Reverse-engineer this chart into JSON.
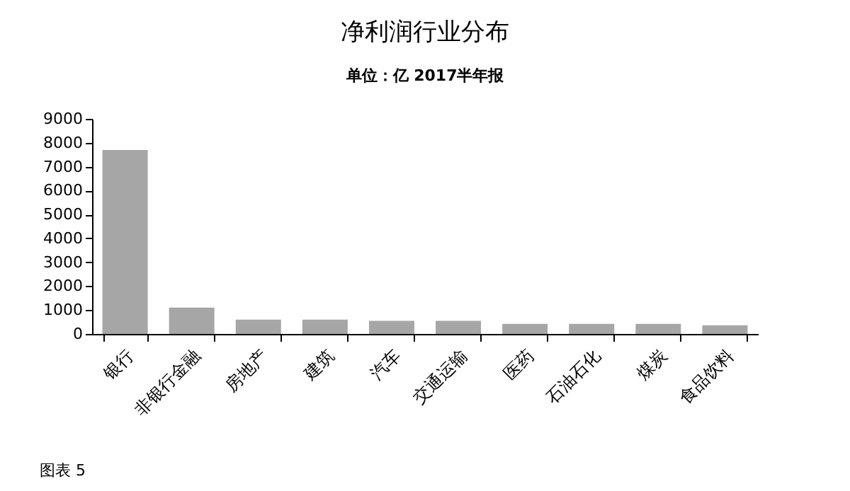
{
  "chart_data": {
    "type": "bar",
    "title": "净利润行业分布",
    "subtitle": "单位：亿   2017半年报",
    "categories": [
      "银行",
      "非银行金融",
      "房地产",
      "建筑",
      "汽车",
      "交通运输",
      "医药",
      "石油石化",
      "煤炭",
      "食品饮料"
    ],
    "values": [
      7700,
      1100,
      600,
      600,
      550,
      550,
      420,
      420,
      420,
      360
    ],
    "color": "#a6a6a6",
    "ylim": [
      0,
      9000
    ],
    "yticks": [
      0,
      1000,
      2000,
      3000,
      4000,
      5000,
      6000,
      7000,
      8000,
      9000
    ],
    "grid": false,
    "annotations": [
      "图表 5"
    ]
  }
}
